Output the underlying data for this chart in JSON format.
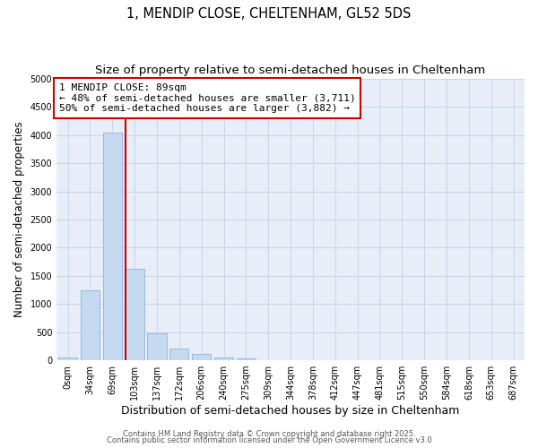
{
  "title": "1, MENDIP CLOSE, CHELTENHAM, GL52 5DS",
  "subtitle": "Size of property relative to semi-detached houses in Cheltenham",
  "xlabel": "Distribution of semi-detached houses by size in Cheltenham",
  "ylabel": "Number of semi-detached properties",
  "categories": [
    "0sqm",
    "34sqm",
    "69sqm",
    "103sqm",
    "137sqm",
    "172sqm",
    "206sqm",
    "240sqm",
    "275sqm",
    "309sqm",
    "344sqm",
    "378sqm",
    "412sqm",
    "447sqm",
    "481sqm",
    "515sqm",
    "550sqm",
    "584sqm",
    "618sqm",
    "653sqm",
    "687sqm"
  ],
  "values": [
    50,
    1250,
    4050,
    1625,
    480,
    215,
    115,
    55,
    40,
    0,
    0,
    0,
    0,
    0,
    0,
    0,
    0,
    0,
    0,
    0,
    0
  ],
  "bar_color": "#c5d9f1",
  "bar_edge_color": "#8ab4d8",
  "bar_edge_width": 0.6,
  "vline_pos": 2.59,
  "vline_color": "#cc0000",
  "vline_linewidth": 1.5,
  "annotation_line1": "1 MENDIP CLOSE: 89sqm",
  "annotation_line2": "← 48% of semi-detached houses are smaller (3,711)",
  "annotation_line3": "50% of semi-detached houses are larger (3,882) →",
  "ylim": [
    0,
    5000
  ],
  "yticks": [
    0,
    500,
    1000,
    1500,
    2000,
    2500,
    3000,
    3500,
    4000,
    4500,
    5000
  ],
  "grid_color": "#c8d4e8",
  "bg_color": "#e8eef8",
  "footer_line1": "Contains HM Land Registry data © Crown copyright and database right 2025.",
  "footer_line2": "Contains public sector information licensed under the Open Government Licence v3.0",
  "title_fontsize": 10.5,
  "subtitle_fontsize": 9.5,
  "xlabel_fontsize": 9,
  "ylabel_fontsize": 8.5,
  "tick_fontsize": 7,
  "annotation_fontsize": 8,
  "footer_fontsize": 6
}
